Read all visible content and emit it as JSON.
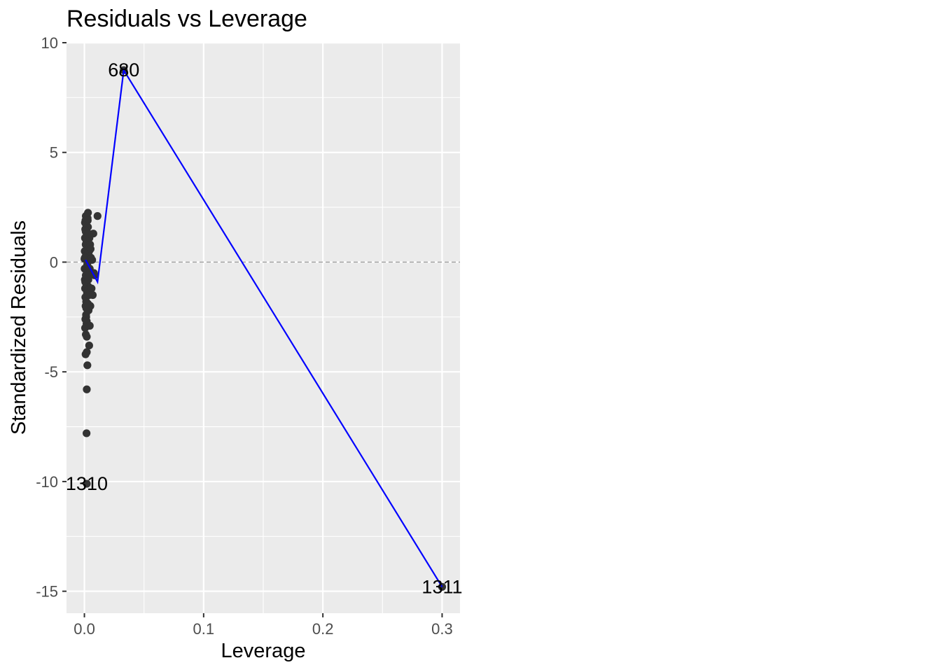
{
  "chart_data": {
    "type": "scatter",
    "title": "Residuals vs Leverage",
    "xlabel": "Leverage",
    "ylabel": "Standardized Residuals",
    "xlim": [
      -0.015,
      0.315
    ],
    "ylim": [
      -16.0,
      10.0
    ],
    "x_ticks": [
      {
        "value": 0.0,
        "label": "0.0"
      },
      {
        "value": 0.1,
        "label": "0.1"
      },
      {
        "value": 0.2,
        "label": "0.2"
      },
      {
        "value": 0.3,
        "label": "0.3"
      }
    ],
    "y_ticks": [
      {
        "value": 10,
        "label": "10"
      },
      {
        "value": 5,
        "label": "5"
      },
      {
        "value": 0,
        "label": "0"
      },
      {
        "value": -5,
        "label": "-5"
      },
      {
        "value": -10,
        "label": "-10"
      },
      {
        "value": -15,
        "label": "-15"
      }
    ],
    "grid": true,
    "legend": "none",
    "colors": {
      "panel": "#ebebeb",
      "grid": "#ffffff",
      "points": "#333333",
      "smooth_line": "#0000ff",
      "reference_line": "#999999"
    },
    "reference_line": {
      "y": 0,
      "style": "dashed"
    },
    "points": [
      {
        "x": 0.0001,
        "y": 0.15
      },
      {
        "x": 0.0002,
        "y": -0.3
      },
      {
        "x": 0.0003,
        "y": 0.5
      },
      {
        "x": 0.0004,
        "y": -0.8
      },
      {
        "x": 0.0005,
        "y": 1.1
      },
      {
        "x": 0.0006,
        "y": -1.2
      },
      {
        "x": 0.0007,
        "y": 1.5
      },
      {
        "x": 0.0008,
        "y": -1.6
      },
      {
        "x": 0.0009,
        "y": 1.9
      },
      {
        "x": 0.001,
        "y": -2.0
      },
      {
        "x": 0.0011,
        "y": 0.8
      },
      {
        "x": 0.0012,
        "y": -0.6
      },
      {
        "x": 0.0013,
        "y": 0.3
      },
      {
        "x": 0.0014,
        "y": -2.4
      },
      {
        "x": 0.0015,
        "y": 1.7
      },
      {
        "x": 0.0016,
        "y": -1.0
      },
      {
        "x": 0.0017,
        "y": 0.9
      },
      {
        "x": 0.0018,
        "y": -2.8
      },
      {
        "x": 0.0019,
        "y": 1.3
      },
      {
        "x": 0.002,
        "y": -0.2
      },
      {
        "x": 0.0021,
        "y": 2.0
      },
      {
        "x": 0.0022,
        "y": -1.4
      },
      {
        "x": 0.0023,
        "y": 0.6
      },
      {
        "x": 0.0024,
        "y": -1.9
      },
      {
        "x": 0.0025,
        "y": 1.2
      },
      {
        "x": 0.0026,
        "y": -0.7
      },
      {
        "x": 0.0027,
        "y": 0.0
      },
      {
        "x": 0.0028,
        "y": -2.2
      },
      {
        "x": 0.003,
        "y": 1.6
      },
      {
        "x": 0.0032,
        "y": -1.1
      },
      {
        "x": 0.0034,
        "y": 0.4
      },
      {
        "x": 0.0036,
        "y": -0.5
      },
      {
        "x": 0.0005,
        "y": 1.8
      },
      {
        "x": 0.0008,
        "y": -2.6
      },
      {
        "x": 0.0012,
        "y": 2.1
      },
      {
        "x": 0.0015,
        "y": -1.8
      },
      {
        "x": 0.0018,
        "y": 1.0
      },
      {
        "x": 0.0022,
        "y": -0.4
      },
      {
        "x": 0.0026,
        "y": 0.7
      },
      {
        "x": 0.0029,
        "y": -1.3
      },
      {
        "x": 0.0004,
        "y": 0.2
      },
      {
        "x": 0.0007,
        "y": -0.9
      },
      {
        "x": 0.0011,
        "y": 1.4
      },
      {
        "x": 0.0016,
        "y": -2.1
      },
      {
        "x": 0.002,
        "y": 0.9
      },
      {
        "x": 0.0024,
        "y": -0.1
      },
      {
        "x": 0.0028,
        "y": 1.9
      },
      {
        "x": 0.0033,
        "y": -0.8
      },
      {
        "x": 0.0038,
        "y": 0.6
      },
      {
        "x": 0.004,
        "y": -1.5
      },
      {
        "x": 0.0042,
        "y": 1.1
      },
      {
        "x": 0.0045,
        "y": -0.3
      },
      {
        "x": 0.0048,
        "y": 0.8
      },
      {
        "x": 0.005,
        "y": -2.0
      },
      {
        "x": 0.0055,
        "y": 0.2
      },
      {
        "x": 0.006,
        "y": -1.2
      },
      {
        "x": 0.0065,
        "y": 0.1
      },
      {
        "x": 0.007,
        "y": -1.5
      },
      {
        "x": 0.0075,
        "y": 1.3
      },
      {
        "x": 0.008,
        "y": -0.5
      },
      {
        "x": 0.0085,
        "y": -0.6
      },
      {
        "x": 0.004,
        "y": 0.5
      },
      {
        "x": 0.0044,
        "y": -0.6
      },
      {
        "x": 0.0052,
        "y": 0.6
      },
      {
        "x": 0.0035,
        "y": 1.3
      },
      {
        "x": 0.003,
        "y": -1.9
      },
      {
        "x": 0.0027,
        "y": 2.0
      },
      {
        "x": 0.0006,
        "y": -3.0
      },
      {
        "x": 0.0015,
        "y": -2.5
      },
      {
        "x": 0.002,
        "y": -2.7
      },
      {
        "x": 0.0035,
        "y": -2.2
      },
      {
        "x": 0.0045,
        "y": -2.9
      },
      {
        "x": 0.0012,
        "y": -3.3
      },
      {
        "x": 0.002,
        "y": -3.4
      },
      {
        "x": 0.004,
        "y": -3.8
      },
      {
        "x": 0.001,
        "y": -4.2
      },
      {
        "x": 0.002,
        "y": -4.1
      },
      {
        "x": 0.0025,
        "y": -4.7
      },
      {
        "x": 0.002,
        "y": -5.8
      },
      {
        "x": 0.0018,
        "y": -7.8
      },
      {
        "x": 0.003,
        "y": 2.25
      },
      {
        "x": 0.011,
        "y": 2.1
      },
      {
        "x": 0.002,
        "y": -10.1
      },
      {
        "x": 0.033,
        "y": 8.75
      },
      {
        "x": 0.3,
        "y": -14.8
      }
    ],
    "smooth_line": [
      {
        "x": 0.001,
        "y": 0.1
      },
      {
        "x": 0.011,
        "y": -0.9
      },
      {
        "x": 0.033,
        "y": 8.75
      },
      {
        "x": 0.3,
        "y": -14.8
      }
    ],
    "annotations": [
      {
        "label": "680",
        "x": 0.033,
        "y": 8.75
      },
      {
        "label": "1310",
        "x": 0.002,
        "y": -10.1
      },
      {
        "label": "1311",
        "x": 0.3,
        "y": -14.8
      }
    ]
  }
}
